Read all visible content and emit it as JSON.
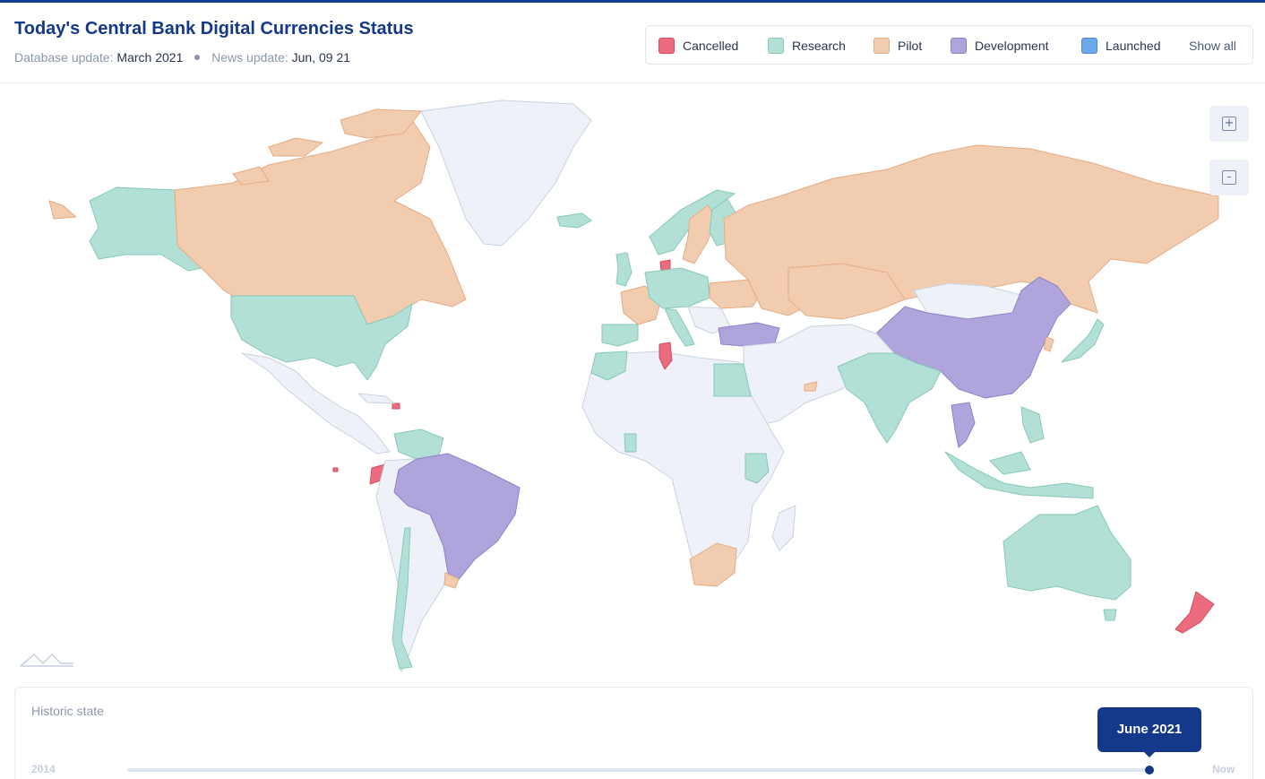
{
  "header": {
    "title": "Today's Central Bank Digital Currencies Status",
    "db_label": "Database update:",
    "db_value": "March 2021",
    "news_label": "News update:",
    "news_value": "Jun, 09 21"
  },
  "legend": {
    "items": [
      {
        "label": "Cancelled",
        "color": "#ec6b7e"
      },
      {
        "label": "Research",
        "color": "#b3e0d6"
      },
      {
        "label": "Pilot",
        "color": "#f2ccae"
      },
      {
        "label": "Development",
        "color": "#b0a4dc"
      },
      {
        "label": "Launched",
        "color": "#6ea8ec"
      }
    ],
    "show_all": "Show all"
  },
  "map": {
    "colors": {
      "cancelled": "#ec6b7e",
      "research": "#b3e0d6",
      "pilot": "#f2ccae",
      "development": "#b0a4dc",
      "launched": "#6ea8ec",
      "no_data": "#eef2f8",
      "border": "#c8d2e0"
    },
    "zoom_in": "+",
    "zoom_out": "-"
  },
  "historic": {
    "title": "Historic state",
    "start": "2014",
    "end": "Now",
    "current": "June 2021",
    "progress": 0.995
  }
}
